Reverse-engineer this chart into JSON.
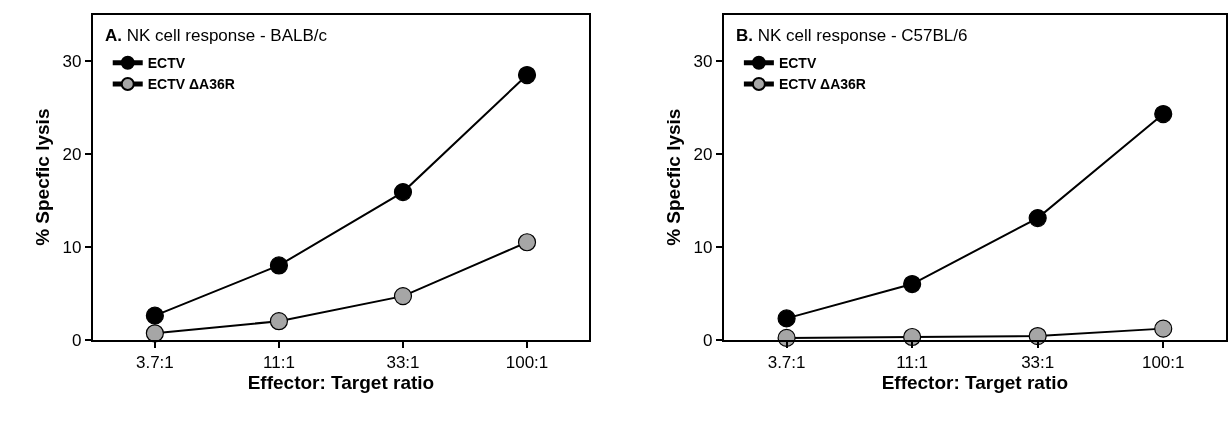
{
  "chart_data": [
    {
      "type": "line",
      "title": "A. NK cell response - BALB/c",
      "xlabel": "Effector: Target ratio",
      "ylabel": "% Specfic lysis",
      "categories": [
        "3.7:1",
        "11:1",
        "33:1",
        "100:1"
      ],
      "ylim": [
        0,
        35
      ],
      "yticks": [
        0,
        10,
        20,
        30
      ],
      "marker": "circle",
      "line_style": "solid",
      "legend": "top left",
      "series": [
        {
          "name": "ECTV",
          "color": "#000000",
          "values": [
            2.6,
            8.0,
            15.9,
            28.5
          ]
        },
        {
          "name": "ECTV ΔA36R",
          "color": "#a6a6a6",
          "values": [
            0.7,
            2.0,
            4.7,
            10.5
          ]
        }
      ]
    },
    {
      "type": "line",
      "title": "B. NK cell response - C57BL/6",
      "xlabel": "Effector: Target ratio",
      "ylabel": "% Specfic lysis",
      "categories": [
        "3.7:1",
        "11:1",
        "33:1",
        "100:1"
      ],
      "ylim": [
        0,
        35
      ],
      "yticks": [
        0,
        10,
        20,
        30
      ],
      "marker": "circle",
      "line_style": "solid",
      "legend": "top left",
      "series": [
        {
          "name": "ECTV",
          "color": "#000000",
          "values": [
            2.3,
            6.0,
            13.1,
            24.3
          ]
        },
        {
          "name": "ECTV ΔA36R",
          "color": "#a6a6a6",
          "values": [
            0.2,
            0.3,
            0.4,
            1.2
          ]
        }
      ]
    }
  ]
}
